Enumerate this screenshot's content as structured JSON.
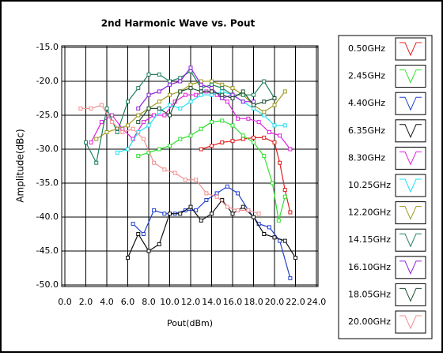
{
  "chart_data": {
    "type": "line",
    "title": "2nd Harmonic Wave vs. Pout",
    "x_label": "Pout(dBm)",
    "y_label": "Amplitude(dBc)",
    "xlim": [
      0,
      24
    ],
    "ylim": [
      -50,
      -15
    ],
    "xticks": [
      {
        "value": 0,
        "label": "0.0"
      },
      {
        "value": 2,
        "label": "2.0"
      },
      {
        "value": 4,
        "label": "4.0"
      },
      {
        "value": 6,
        "label": "6.0"
      },
      {
        "value": 8,
        "label": "8.0"
      },
      {
        "value": 10,
        "label": "10.0"
      },
      {
        "value": 12,
        "label": "12.0"
      },
      {
        "value": 14,
        "label": "14.0"
      },
      {
        "value": 16,
        "label": "16.0"
      },
      {
        "value": 18,
        "label": "18.0"
      },
      {
        "value": 20,
        "label": "20.0"
      },
      {
        "value": 22,
        "label": "22.0"
      },
      {
        "value": 24,
        "label": "24.0"
      }
    ],
    "yticks": [
      {
        "value": -15,
        "label": "-15.0"
      },
      {
        "value": -20,
        "label": "-20.0"
      },
      {
        "value": -25,
        "label": "-25.0"
      },
      {
        "value": -30,
        "label": "-30.0"
      },
      {
        "value": -35,
        "label": "-35.0"
      },
      {
        "value": -40,
        "label": "-40.0"
      },
      {
        "value": -45,
        "label": "-45.0"
      },
      {
        "value": -50,
        "label": "-50.0"
      }
    ],
    "grid": true,
    "legend": "right",
    "series": [
      {
        "name": "0.50GHz",
        "color": "#e02020",
        "x": [
          13,
          14,
          15,
          16,
          17,
          18,
          19,
          20,
          20.5,
          21,
          21.5
        ],
        "values": [
          -30,
          -29.5,
          -29,
          -28.8,
          -28.5,
          -28.3,
          -28.3,
          -29,
          -32,
          -36,
          -39.3
        ]
      },
      {
        "name": "2.45GHz",
        "color": "#30e030",
        "x": [
          7,
          8,
          9,
          10,
          11,
          12,
          13,
          14,
          15,
          16,
          17,
          18,
          19,
          19.8,
          20.4,
          21
        ],
        "values": [
          -31,
          -30.5,
          -30,
          -29.5,
          -28.5,
          -28,
          -27,
          -26,
          -25.8,
          -26.5,
          -28,
          -29,
          -31,
          -35,
          -40.5,
          -37
        ]
      },
      {
        "name": "4.40GHz",
        "color": "#2040d0",
        "x": [
          6.5,
          7.5,
          8.5,
          9.5,
          10.5,
          11.5,
          12.5,
          13.5,
          14.5,
          15.5,
          16.5,
          17.5,
          18.5,
          19.5,
          20.5,
          21.5
        ],
        "values": [
          -41,
          -42.5,
          -39,
          -39.5,
          -39.5,
          -39,
          -39,
          -37.5,
          -36.5,
          -35.5,
          -36.5,
          -39,
          -41,
          -41.5,
          -43.5,
          -49
        ]
      },
      {
        "name": "6.35GHz",
        "color": "#101010",
        "x": [
          6,
          7,
          8,
          9,
          10,
          11,
          12,
          13,
          14,
          15,
          16,
          17,
          18,
          19,
          20,
          21,
          22
        ],
        "values": [
          -46,
          -42.5,
          -45,
          -44,
          -39.5,
          -39.5,
          -38.5,
          -40.5,
          -39.5,
          -37.5,
          -39.5,
          -38.5,
          -40,
          -42.5,
          -43,
          -43.5,
          -46
        ]
      },
      {
        "name": "8.30GHz",
        "color": "#e020e0",
        "x": [
          2.5,
          3.5,
          4.5,
          5.5,
          6.5,
          7.5,
          8.5,
          9.5,
          10.5,
          11.5,
          12.5,
          13.5,
          14.5,
          15.5,
          16.5,
          17.5,
          18.5,
          19.5,
          20.5,
          21.5
        ],
        "values": [
          -29,
          -26,
          -25,
          -27,
          -28.5,
          -26,
          -25,
          -25,
          -23,
          -22,
          -22,
          -21.5,
          -22,
          -23,
          -25.5,
          -25.5,
          -26,
          -27.5,
          -28,
          -30
        ]
      },
      {
        "name": "10.25GHz",
        "color": "#20e0f0",
        "x": [
          5,
          6,
          7,
          8,
          9,
          10,
          11,
          12,
          13,
          14,
          15,
          16,
          17,
          18,
          19,
          20,
          21
        ],
        "values": [
          -30.5,
          -30,
          -27.5,
          -26.5,
          -24.5,
          -23.5,
          -24,
          -23,
          -22,
          -22,
          -21.5,
          -22,
          -23,
          -24,
          -25,
          -26.5,
          -26.5
        ]
      },
      {
        "name": "12.20GHz",
        "color": "#a09a20",
        "x": [
          3,
          4,
          5,
          6,
          7,
          8,
          9,
          10,
          11,
          12,
          13,
          14,
          15,
          16,
          17,
          18,
          19,
          20,
          21
        ],
        "values": [
          -28.5,
          -27.5,
          -27,
          -26.5,
          -25,
          -24,
          -23,
          -22,
          -21.5,
          -20.5,
          -20,
          -20,
          -20.5,
          -21,
          -22,
          -23.5,
          -24.5,
          -23.5,
          -21.5
        ]
      },
      {
        "name": "14.15GHz",
        "color": "#208060",
        "x": [
          2,
          3,
          4,
          5,
          6,
          7,
          8,
          9,
          10,
          11,
          12,
          13,
          14,
          15,
          16,
          17,
          18,
          19,
          20
        ],
        "values": [
          -29,
          -32,
          -24,
          -27.5,
          -23,
          -21,
          -19,
          -19,
          -20,
          -19.5,
          -18.5,
          -21,
          -20.5,
          -21,
          -22,
          -22,
          -22,
          -20,
          -22.5
        ]
      },
      {
        "name": "16.10GHz",
        "color": "#9020e0",
        "x": [
          7,
          8,
          9,
          10,
          11,
          12,
          13,
          14,
          15,
          16,
          17,
          18
        ],
        "values": [
          -24,
          -22,
          -21.5,
          -20.5,
          -20,
          -18,
          -20.5,
          -21,
          -22.5,
          -22,
          -23,
          -23
        ]
      },
      {
        "name": "18.05GHz",
        "color": "#205030",
        "x": [
          7,
          8,
          9,
          10,
          11,
          12,
          13,
          14,
          15,
          16,
          17,
          18,
          19,
          20
        ],
        "values": [
          -26,
          -24,
          -24,
          -25,
          -21.5,
          -21,
          -21.5,
          -21.5,
          -22,
          -22.5,
          -21.5,
          -23.5,
          -23,
          -22.5
        ]
      },
      {
        "name": "20.00GHz",
        "color": "#f09090",
        "x": [
          1.5,
          2.5,
          3.5,
          4.5,
          5.5,
          6.5,
          7.5,
          8.5,
          9.5,
          10.5,
          11.5,
          12.5,
          13.5,
          14.5,
          15.5,
          16.5,
          17.5,
          18.5
        ],
        "values": [
          -24,
          -24,
          -23.5,
          -26,
          -27.5,
          -27,
          -28.5,
          -32,
          -33,
          -33.5,
          -34.5,
          -34.5,
          -36.5,
          -37,
          -38.5,
          -39,
          -39,
          -39.5
        ]
      }
    ]
  }
}
